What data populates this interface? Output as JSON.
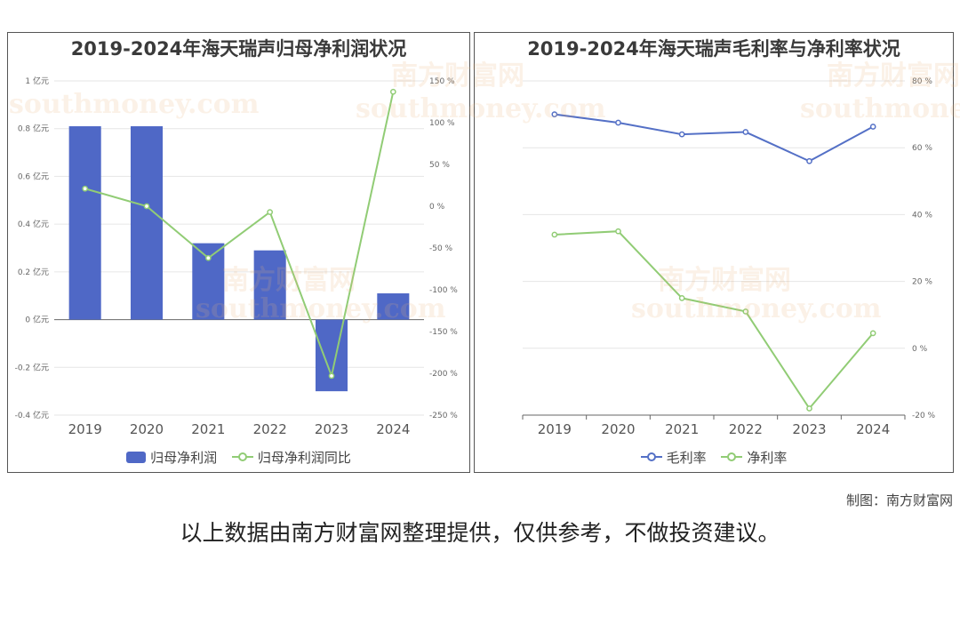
{
  "credit": "制图：南方财富网",
  "footer_note": "以上数据由南方财富网整理提供，仅供参考，不做投资建议。",
  "watermark_texts": [
    "南方财富网",
    "southmoney.com"
  ],
  "colors": {
    "bar": "#4f68c6",
    "blue_line": "#5470c6",
    "green_line": "#91cc75",
    "grid": "#e6e6e6",
    "axis": "#666666"
  },
  "chart_data": [
    {
      "type": "bar",
      "title": "2019-2024年海天瑞声归母净利润状况",
      "categories": [
        "2019",
        "2020",
        "2021",
        "2022",
        "2023",
        "2024"
      ],
      "series": [
        {
          "name": "归母净利润",
          "type": "bar",
          "axis": "left",
          "values": [
            0.81,
            0.81,
            0.32,
            0.29,
            -0.3,
            0.11
          ]
        },
        {
          "name": "归母净利润同比",
          "type": "line",
          "axis": "right",
          "values": [
            21,
            0,
            -62,
            -7,
            -203,
            137
          ]
        }
      ],
      "left_axis": {
        "min": -0.4,
        "max": 1.0,
        "step": 0.2,
        "tick_labels": [
          "-0.4 亿元",
          "-0.2 亿元",
          "0 亿元",
          "0.2 亿元",
          "0.4 亿元",
          "0.6 亿元",
          "0.8 亿元",
          "1 亿元"
        ]
      },
      "right_axis": {
        "min": -250,
        "max": 150,
        "step": 50,
        "tick_labels": [
          "-250 %",
          "-200 %",
          "-150 %",
          "-100 %",
          "-50 %",
          "0 %",
          "50 %",
          "100 %",
          "150 %"
        ]
      },
      "legend": [
        "归母净利润",
        "归母净利润同比"
      ],
      "legend_position": "bottom",
      "grid": true
    },
    {
      "type": "line",
      "title": "2019-2024年海天瑞声毛利率与净利率状况",
      "categories": [
        "2019",
        "2020",
        "2021",
        "2022",
        "2023",
        "2024"
      ],
      "series": [
        {
          "name": "毛利率",
          "values": [
            70,
            67.5,
            64,
            64.7,
            56,
            66.3
          ]
        },
        {
          "name": "净利率",
          "values": [
            34,
            35,
            15,
            11,
            -18,
            4.5
          ]
        }
      ],
      "right_axis": {
        "min": -20,
        "max": 80,
        "step": 20,
        "tick_labels": [
          "-20 %",
          "0 %",
          "20 %",
          "40 %",
          "60 %",
          "80 %"
        ]
      },
      "legend": [
        "毛利率",
        "净利率"
      ],
      "legend_position": "bottom",
      "grid": true
    }
  ]
}
